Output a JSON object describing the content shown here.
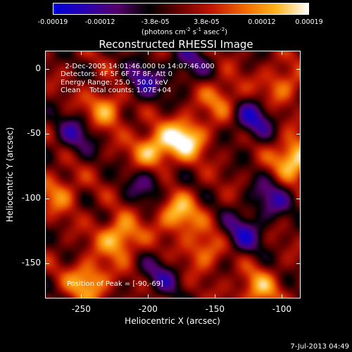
{
  "chart_data": {
    "type": "heatmap",
    "title": "Reconstructed RHESSI Image",
    "xlabel": "Heliocentric X (arcsec)",
    "ylabel": "Heliocentric Y (arcsec)",
    "xlim": [
      -277,
      -86
    ],
    "ylim": [
      -177,
      14
    ],
    "x_ticks": [
      "-250",
      "-200",
      "-150",
      "-100"
    ],
    "y_ticks": [
      "0",
      "-50",
      "-100",
      "-150"
    ],
    "x_tick_values": [
      -250,
      -200,
      -150,
      -100
    ],
    "y_tick_values": [
      0,
      -50,
      -100,
      -150
    ],
    "colorbar": {
      "ticks": [
        "-0.00019",
        "-0.00012",
        "-3.8e-05",
        "3.8e-05",
        "0.00012",
        "0.00019"
      ],
      "tick_values": [
        -0.00019,
        -0.00012,
        -3.8e-05,
        3.8e-05,
        0.00012,
        0.00019
      ],
      "range": [
        -0.00019,
        0.00019
      ],
      "units_main": "(photons cm",
      "units_sup1": "-2",
      "units_mid": " s",
      "units_sup2": "-1",
      "units_end": " asec",
      "units_sup3": "-2",
      "units_close": ")",
      "colors": [
        "#0000d8",
        "#2a00b0",
        "#55006a",
        "#000000",
        "#6e0000",
        "#c41800",
        "#f06a00",
        "#ffb41e",
        "#ffffff"
      ]
    },
    "annotation_lines": [
      "  2-Dec-2005 14:01:46.000 to 14:07:46.000",
      "Detectors: 4F 5F 6F 7F 8F, Att 0",
      "Energy Range: 25.0 - 50.0 keV",
      "Clean    Total counts: 1.07E+04"
    ],
    "peak_label": "Position of Peak = [-90,-69]",
    "peak_position": [
      -90,
      -69
    ],
    "sources": [
      {
        "x": -172,
        "y": -53,
        "intensity": 0.00018
      },
      {
        "x": -196,
        "y": -62,
        "intensity": 0.00016
      },
      {
        "x": -90,
        "y": -69,
        "intensity": 0.00019
      },
      {
        "x": -178,
        "y": -112,
        "intensity": 0.00015
      },
      {
        "x": -222,
        "y": -130,
        "intensity": 0.00016
      },
      {
        "x": -245,
        "y": -164,
        "intensity": 0.00015
      },
      {
        "x": -232,
        "y": -30,
        "intensity": 0.00013
      },
      {
        "x": -118,
        "y": -170,
        "intensity": 0.00012
      },
      {
        "x": -158,
        "y": -140,
        "intensity": 0.00011
      },
      {
        "x": -100,
        "y": -12,
        "intensity": 0.0001
      },
      {
        "x": -268,
        "y": -95,
        "intensity": 0.0001
      },
      {
        "x": -145,
        "y": -22,
        "intensity": 0.0001
      },
      {
        "x": -205,
        "y": -10,
        "intensity": -0.00012
      },
      {
        "x": -122,
        "y": -38,
        "intensity": -0.00013
      },
      {
        "x": -130,
        "y": -128,
        "intensity": -0.00012
      },
      {
        "x": -108,
        "y": -100,
        "intensity": -0.00011
      },
      {
        "x": -255,
        "y": -50,
        "intensity": -0.0001
      },
      {
        "x": -200,
        "y": -88,
        "intensity": -9e-05
      },
      {
        "x": -170,
        "y": 5,
        "intensity": -9e-05
      },
      {
        "x": -190,
        "y": -160,
        "intensity": -9e-05
      }
    ]
  },
  "footer_date": "7-Jul-2013 04:49"
}
